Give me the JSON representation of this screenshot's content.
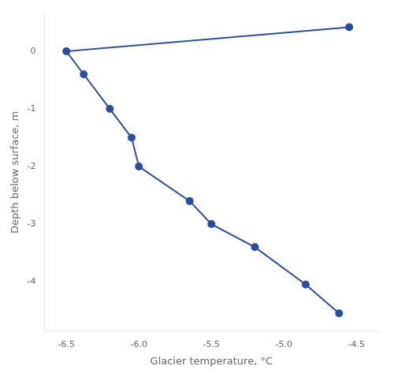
{
  "chart_data": {
    "type": "line",
    "x": [
      -4.55,
      -6.5,
      -6.38,
      -6.2,
      -6.05,
      -6.0,
      -5.65,
      -5.5,
      -5.2,
      -4.85,
      -4.62
    ],
    "values": [
      0.42,
      0.0,
      -0.4,
      -1.0,
      -1.5,
      -2.0,
      -2.6,
      -3.0,
      -3.4,
      -4.05,
      -4.55
    ],
    "color": "#2b4d9e",
    "marker": "circle",
    "line_style": "solid",
    "xlabel": "Glacier temperature, °C",
    "ylabel": "Depth below surface, m",
    "xlim": [
      -6.65,
      -4.35
    ],
    "ylim": [
      -4.85,
      0.65
    ],
    "xticks": [
      -6.5,
      {
        "value": -6.0,
        "label": "-6.0"
      },
      -5.5,
      {
        "value": -5.0,
        "label": "-5.0"
      },
      -4.5
    ],
    "yticks": [
      0,
      -1,
      -2,
      -3,
      -4
    ],
    "grid": false
  }
}
